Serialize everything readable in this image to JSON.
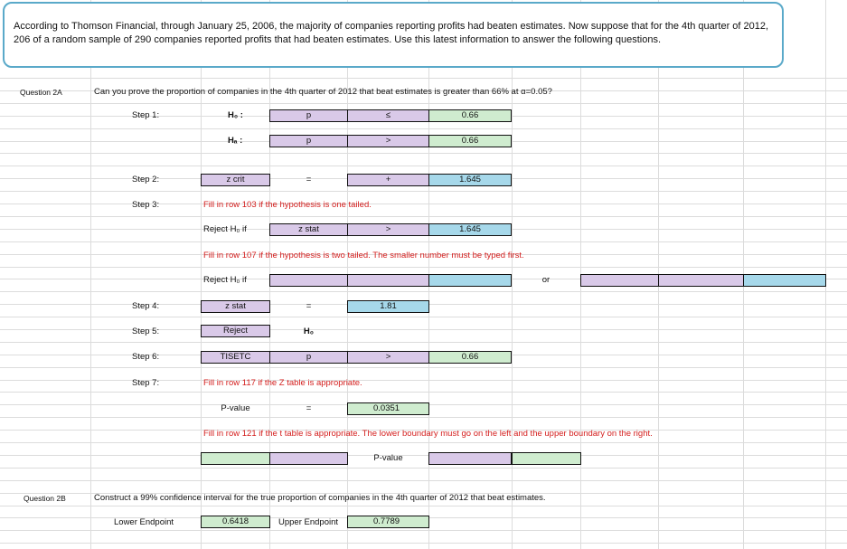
{
  "problem_text": "According to Thomson Financial, through January 25, 2006, the majority of companies reporting profits had beaten estimates. Now suppose that for the 4th quarter of 2012, 206 of a random sample of 290 companies reported profits that had beaten estimates. Use this latest information to answer the following questions.",
  "q2a": {
    "label": "Question 2A",
    "prompt": "Can you prove the proportion of companies in the 4th quarter of 2012 that beat estimates is greater than 66% at α=0.05?",
    "step1": {
      "label": "Step 1:",
      "h0": "H₀ :",
      "h0_param": "p",
      "h0_sign": "≤",
      "h0_value": "0.66",
      "ha": "Hₐ :",
      "ha_param": "p",
      "ha_sign": ">",
      "ha_value": "0.66"
    },
    "step2": {
      "label": "Step 2:",
      "crit": "z crit",
      "eq": "=",
      "sign": "+",
      "value": "1.645"
    },
    "step3": {
      "label": "Step 3:",
      "note_one_tailed": "Fill in row 103 if the hypothesis is one tailed.",
      "reject_if": "Reject H₀ if",
      "stat": "z stat",
      "sign": ">",
      "value": "1.645",
      "note_two_tailed": "Fill in row 107 if the hypothesis is two tailed.  The smaller number must be typed first.",
      "reject_if_2": "Reject H₀ if",
      "or": "or"
    },
    "step4": {
      "label": "Step 4:",
      "stat": "z stat",
      "eq": "=",
      "value": "1.81"
    },
    "step5": {
      "label": "Step 5:",
      "decision": "Reject",
      "h0": "H₀"
    },
    "step6": {
      "label": "Step 6:",
      "conclusion": "TISETC",
      "param": "p",
      "sign": ">",
      "value": "0.66"
    },
    "step7": {
      "label": "Step 7:",
      "note_z": "Fill in row 117 if the Z table is appropriate.",
      "pvalue_label": "P-value",
      "eq": "=",
      "pvalue": "0.0351",
      "note_t": "Fill in row 121 if the t table is appropriate.  The lower boundary must go on the left and the upper boundary on the right.",
      "pvalue_label_2": "P-value"
    }
  },
  "q2b": {
    "label": "Question 2B",
    "prompt": "Construct a 99% confidence interval for the true proportion of companies in the 4th quarter of 2012 that beat estimates.",
    "lower_label": "Lower Endpoint",
    "lower_value": "0.6418",
    "upper_label": "Upper Endpoint",
    "upper_value": "0.7789"
  },
  "colors": {
    "lavender": "#d9c9e8",
    "green": "#cfeccf",
    "blue": "#a6d8ea",
    "red_note": "#d4201f",
    "callout_border": "#5aa9c9"
  }
}
